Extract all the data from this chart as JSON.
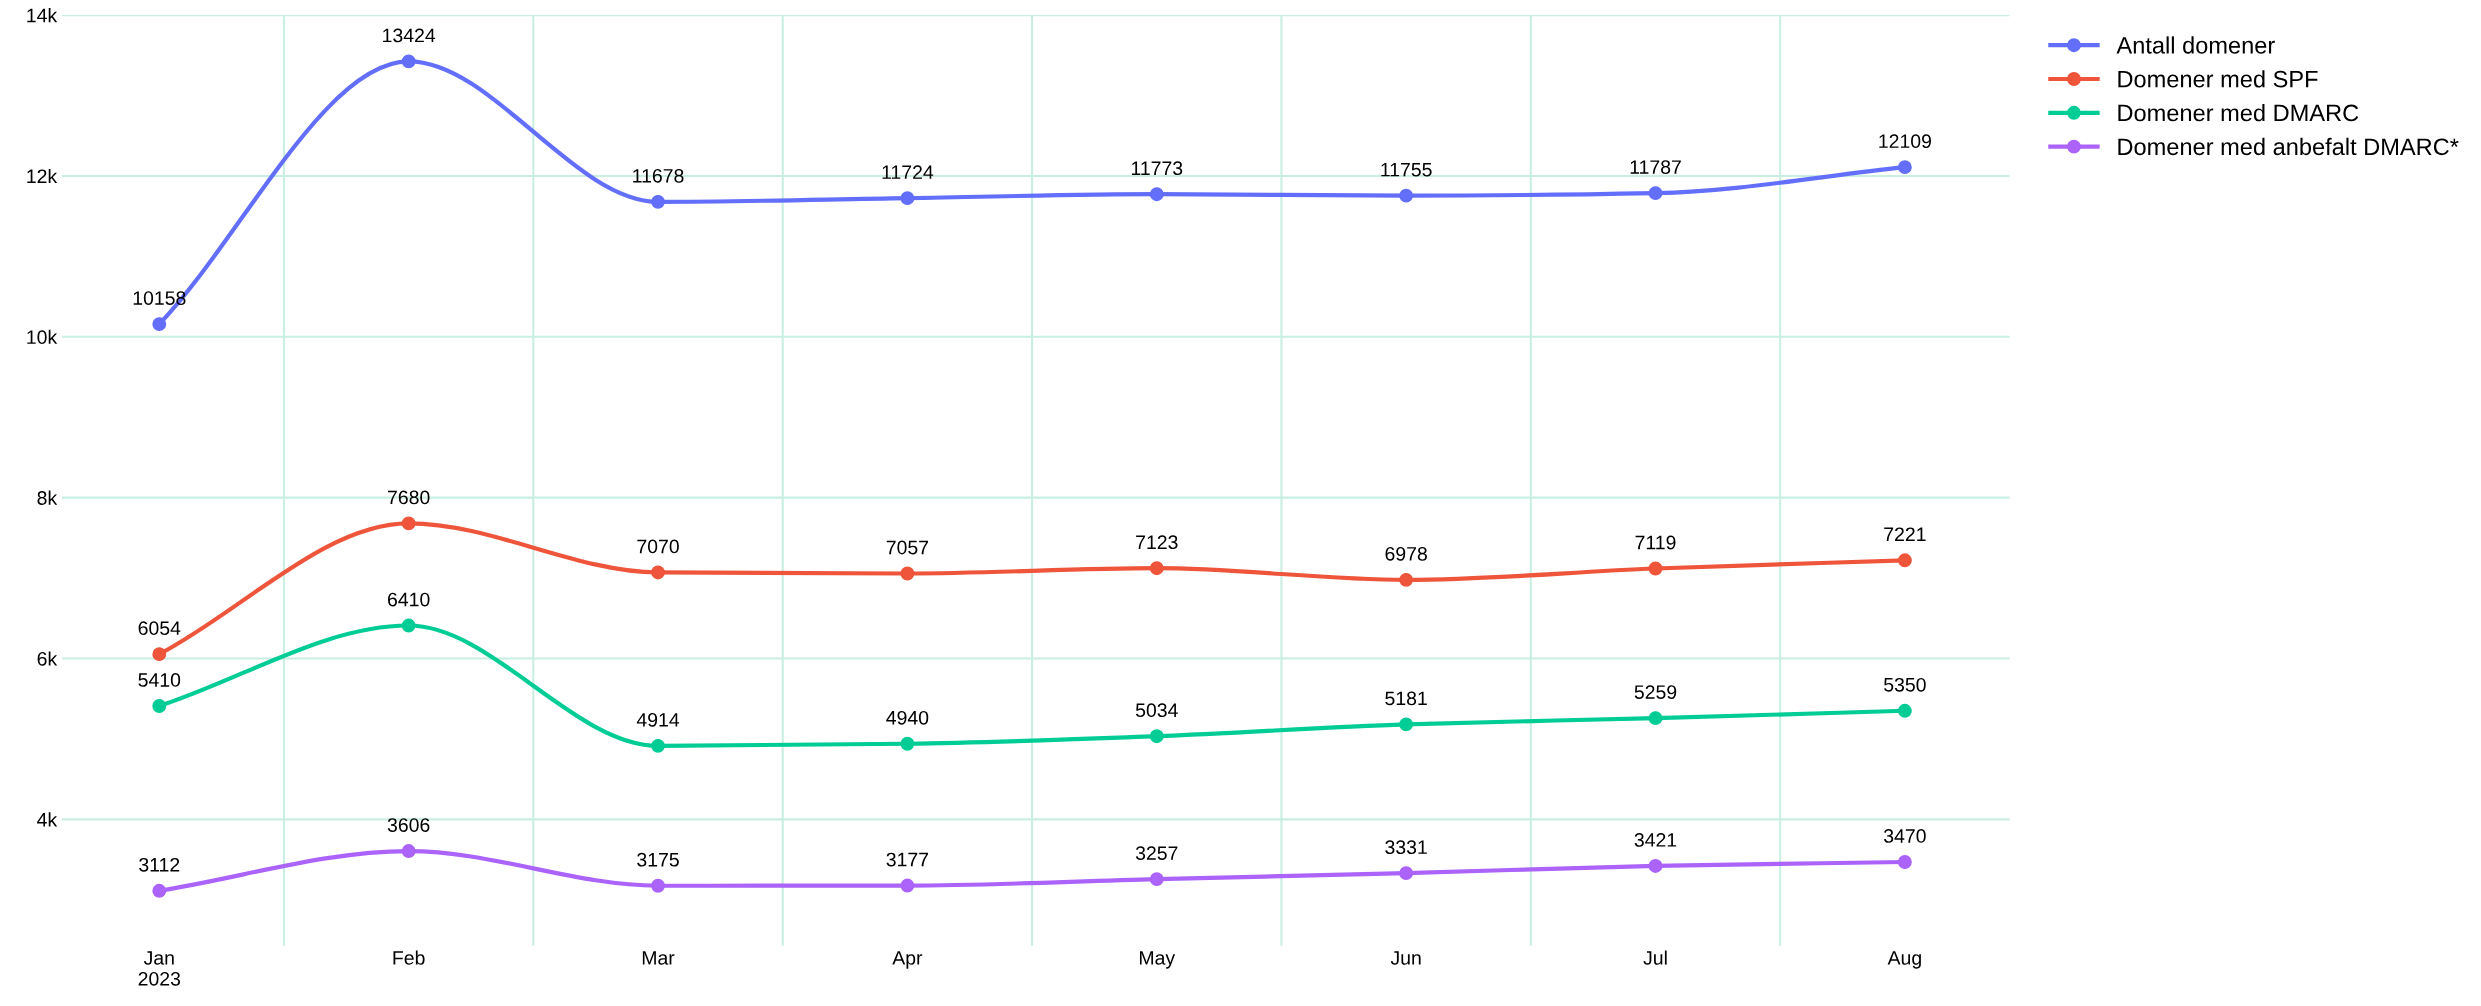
{
  "chart_data": {
    "type": "line",
    "categories": [
      "Jan\n2023",
      "Feb",
      "Mar",
      "Apr",
      "May",
      "Jun",
      "Jul",
      "Aug"
    ],
    "series": [
      {
        "name": "Antall domener",
        "color": "#636efa",
        "values": [
          10158,
          13424,
          11678,
          11724,
          11773,
          11755,
          11787,
          12109
        ]
      },
      {
        "name": "Domener med SPF",
        "color": "#ef553b",
        "values": [
          6054,
          7680,
          7070,
          7057,
          7123,
          6978,
          7119,
          7221
        ]
      },
      {
        "name": "Domener med DMARC",
        "color": "#00cc96",
        "values": [
          5410,
          6410,
          4914,
          4940,
          5034,
          5181,
          5259,
          5350
        ]
      },
      {
        "name": "Domener med anbefalt DMARC*",
        "color": "#ab63fa",
        "values": [
          3112,
          3606,
          3175,
          3177,
          3257,
          3331,
          3421,
          3470
        ]
      }
    ],
    "ylim": [
      2430,
      14000
    ],
    "yticks": [
      {
        "value": 4000,
        "label": "4k"
      },
      {
        "value": 6000,
        "label": "6k"
      },
      {
        "value": 8000,
        "label": "8k"
      },
      {
        "value": 10000,
        "label": "10k"
      },
      {
        "value": 12000,
        "label": "12k"
      },
      {
        "value": 14000,
        "label": "14k"
      }
    ],
    "grid": true,
    "legend": "top right",
    "marker": "circle",
    "line_style": "solid",
    "data_labels": true
  }
}
